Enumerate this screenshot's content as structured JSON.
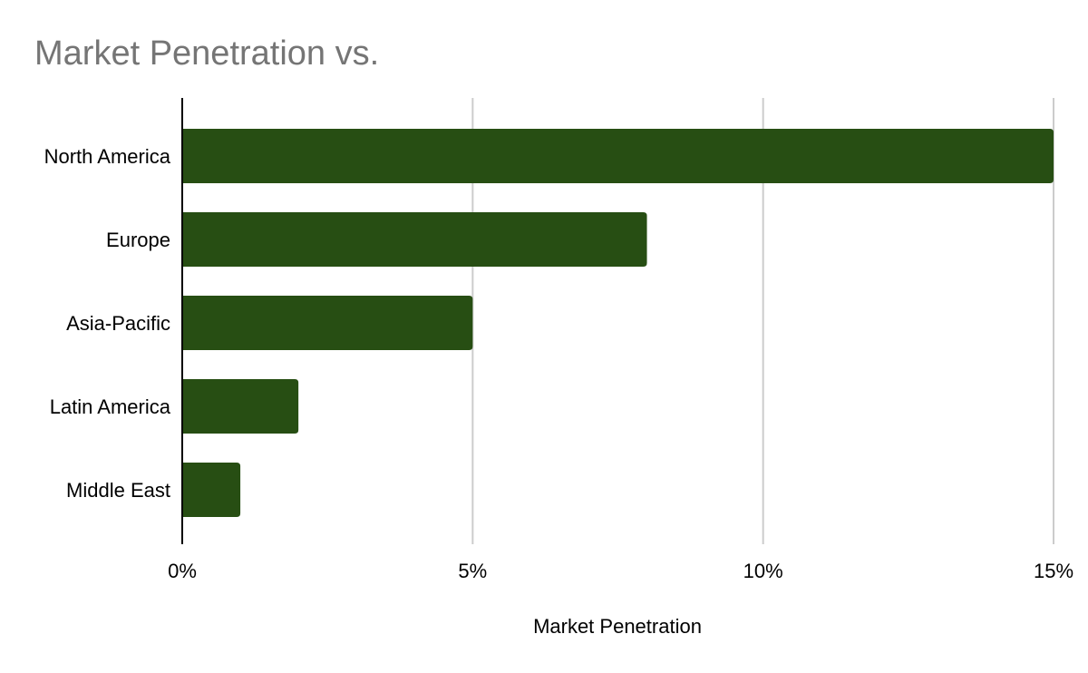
{
  "chart_data": {
    "type": "bar",
    "orientation": "horizontal",
    "title": "Market Penetration vs.",
    "xlabel": "Market Penetration",
    "ylabel": "",
    "categories": [
      "North America",
      "Europe",
      "Asia-Pacific",
      "Latin America",
      "Middle East"
    ],
    "values": [
      15,
      8,
      5,
      2,
      1
    ],
    "value_unit": "%",
    "xlim": [
      0,
      15
    ],
    "xticks": [
      0,
      5,
      10,
      15
    ],
    "xtick_labels": [
      "0%",
      "5%",
      "10%",
      "15%"
    ],
    "grid": "vertical",
    "legend": "none",
    "bar_color": "#274e13",
    "grid_color": "#cccccc",
    "axis_color": "#000000",
    "title_color": "#757575"
  }
}
